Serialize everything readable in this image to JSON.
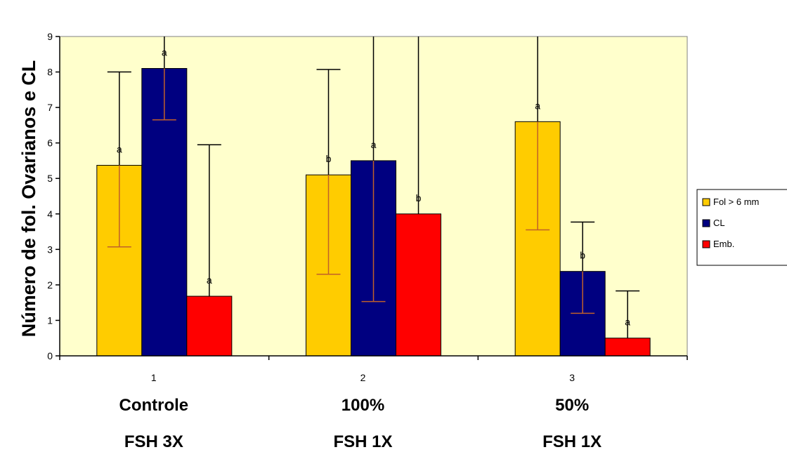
{
  "chart_data": {
    "type": "bar",
    "ylabel": "Número de fol. Ovarianos e CL",
    "ylim": [
      0,
      9
    ],
    "yticks": [
      "0",
      "1",
      "2",
      "3",
      "4",
      "5",
      "6",
      "7",
      "8",
      "9"
    ],
    "categories": [
      "1",
      "2",
      "3"
    ],
    "group_labels": [
      "Controle",
      "100%",
      "50%"
    ],
    "group_sublabels": [
      "FSH 3X",
      "FSH 1X",
      "FSH 1X"
    ],
    "grid": false,
    "legend_position": "right",
    "series": [
      {
        "name": "Fol > 6 mm",
        "color": "#FFCC00",
        "values": [
          5.37,
          5.1,
          6.6
        ],
        "err_low": [
          3.07,
          2.3,
          3.55
        ],
        "err_high": [
          8.0,
          8.07,
          9.0
        ],
        "letters": [
          "a",
          "b",
          "a"
        ]
      },
      {
        "name": "CL",
        "color": "#000080",
        "values": [
          8.1,
          5.5,
          2.38
        ],
        "err_low": [
          6.65,
          1.53,
          1.2
        ],
        "err_high": [
          9.0,
          9.0,
          3.77
        ],
        "letters": [
          "a",
          "a",
          "b"
        ]
      },
      {
        "name": "Emb.",
        "color": "#FF0000",
        "values": [
          1.68,
          4.0,
          0.5
        ],
        "err_low": [
          1.68,
          4.0,
          0.5
        ],
        "err_high": [
          5.95,
          9.0,
          1.83
        ],
        "letters": [
          "a",
          "b",
          "a"
        ]
      }
    ]
  }
}
